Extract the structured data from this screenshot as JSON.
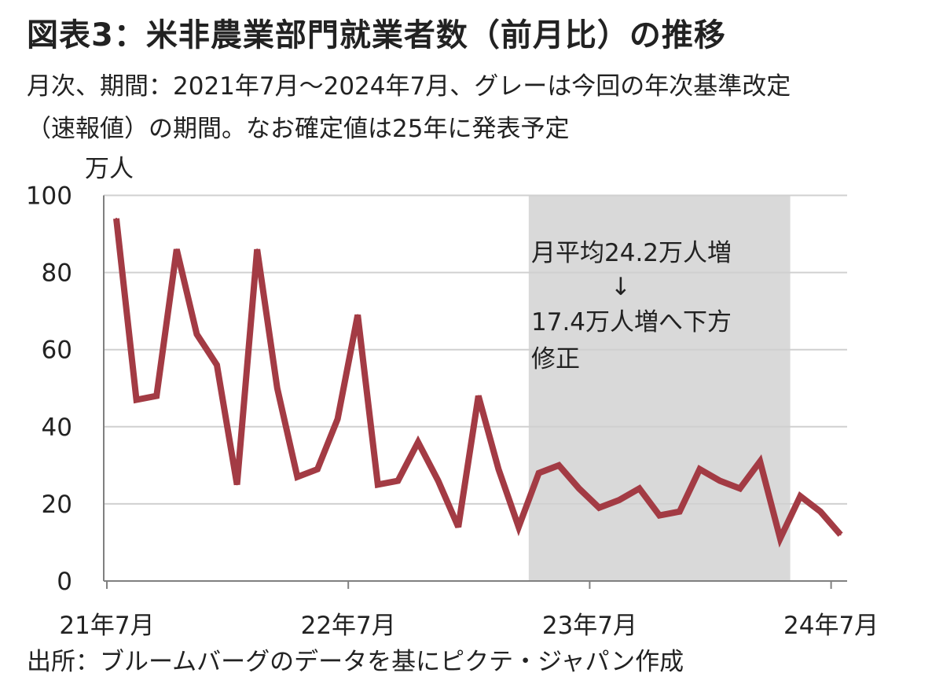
{
  "title": "図表3：米非農業部門就業者数（前月比）の推移",
  "subtitle_line1": "月次、期間：2021年7月～2024年7月、グレーは今回の年次基準改定",
  "subtitle_line2": "（速報値）の期間。なお確定値は25年に発表予定",
  "source": "出所：ブルームバーグのデータを基にピクテ・ジャパン作成",
  "colors": {
    "line": "#a33b44",
    "shade": "#d9d9d9",
    "grid": "#d0d0d0",
    "axis": "#808080"
  },
  "chart_data": {
    "type": "line",
    "unit_label": "万人",
    "ylim": [
      0,
      100
    ],
    "yticks": [
      0,
      20,
      40,
      60,
      80,
      100
    ],
    "grid": true,
    "x_tick_labels": [
      {
        "label": "21年7月",
        "index": 0
      },
      {
        "label": "22年7月",
        "index": 12
      },
      {
        "label": "23年7月",
        "index": 24
      },
      {
        "label": "24年7月",
        "index": 36
      }
    ],
    "shaded_range": {
      "from_index": 20.5,
      "to_index": 33.5
    },
    "annotation": [
      "月平均24.2万人増",
      "↓",
      "17.4万人増へ下方",
      "修正"
    ],
    "series": [
      {
        "values": [
          94,
          47,
          48,
          86,
          64,
          56,
          25,
          86,
          50,
          27,
          29,
          42,
          69,
          25,
          26,
          36,
          26,
          14,
          48,
          29,
          14,
          28,
          30,
          24,
          19,
          21,
          24,
          17,
          18,
          29,
          26,
          24,
          31,
          11,
          22,
          18,
          12
        ]
      }
    ]
  }
}
